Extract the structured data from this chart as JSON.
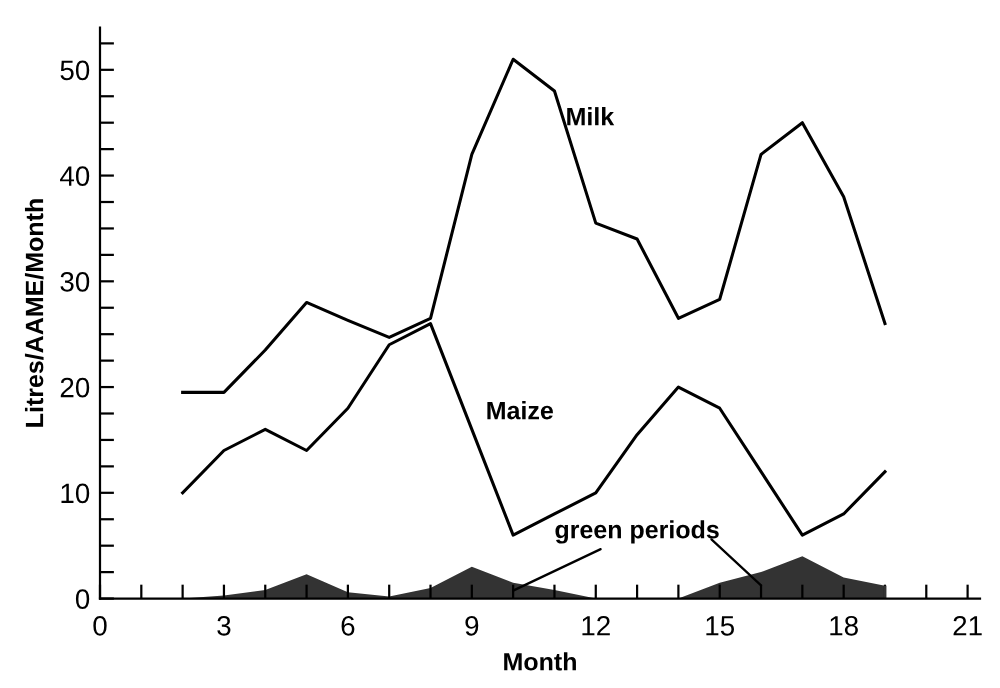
{
  "chart_data": {
    "type": "line",
    "xlabel": "Month",
    "ylabel": "Litres/AAME/Month",
    "xlim": [
      0,
      21.3
    ],
    "ylim": [
      0,
      54
    ],
    "xticks": [
      0,
      {
        "value": 1,
        "label": null
      },
      {
        "value": 2,
        "label": null
      },
      3,
      {
        "value": 4,
        "label": null
      },
      {
        "value": 5,
        "label": null
      },
      6,
      {
        "value": 7,
        "label": null
      },
      {
        "value": 8,
        "label": null
      },
      9,
      {
        "value": 10,
        "label": null
      },
      {
        "value": 11,
        "label": null
      },
      12,
      {
        "value": 13,
        "label": null
      },
      {
        "value": 14,
        "label": null
      },
      15,
      {
        "value": 16,
        "label": null
      },
      {
        "value": 17,
        "label": null
      },
      18,
      {
        "value": 19,
        "label": null
      },
      {
        "value": 20,
        "label": null
      },
      21
    ],
    "yticks": [
      0,
      {
        "value": 2.5,
        "label": null
      },
      {
        "value": 5,
        "label": null
      },
      {
        "value": 7.5,
        "label": null
      },
      10,
      {
        "value": 12.5,
        "label": null
      },
      {
        "value": 15,
        "label": null
      },
      {
        "value": 17.5,
        "label": null
      },
      20,
      {
        "value": 22.5,
        "label": null
      },
      {
        "value": 25,
        "label": null
      },
      {
        "value": 27.5,
        "label": null
      },
      30,
      {
        "value": 32.5,
        "label": null
      },
      {
        "value": 35,
        "label": null
      },
      {
        "value": 37.5,
        "label": null
      },
      40,
      {
        "value": 42.5,
        "label": null
      },
      {
        "value": 45,
        "label": null
      },
      {
        "value": 47.5,
        "label": null
      },
      50,
      {
        "value": 52.5,
        "label": null
      }
    ],
    "grid": false,
    "legend": false,
    "marker": "none",
    "line_style": "solid",
    "x": [
      2,
      3,
      4,
      5,
      6,
      7,
      8,
      9,
      10,
      11,
      12,
      13,
      14,
      15,
      16,
      17,
      18,
      19
    ],
    "series": [
      {
        "name": "Milk",
        "color": "#000000",
        "values": [
          19.5,
          19.5,
          23.5,
          28,
          26.3,
          24.7,
          26.5,
          42,
          51,
          48,
          35.5,
          34,
          26.5,
          28.3,
          42,
          45,
          38,
          26
        ]
      },
      {
        "name": "Maize",
        "color": "#000000",
        "values": [
          10,
          14,
          16,
          14,
          18,
          24,
          26,
          16,
          6,
          8,
          10,
          15.5,
          20,
          18,
          12,
          6,
          8,
          12
        ]
      },
      {
        "name": "green periods",
        "type": "area",
        "color": "#333333",
        "values": [
          0,
          0.3,
          0.8,
          2.3,
          0.6,
          0.2,
          1,
          3,
          1.5,
          0.8,
          0,
          0,
          0,
          1.5,
          2.5,
          4,
          2,
          1.2
        ]
      }
    ]
  }
}
